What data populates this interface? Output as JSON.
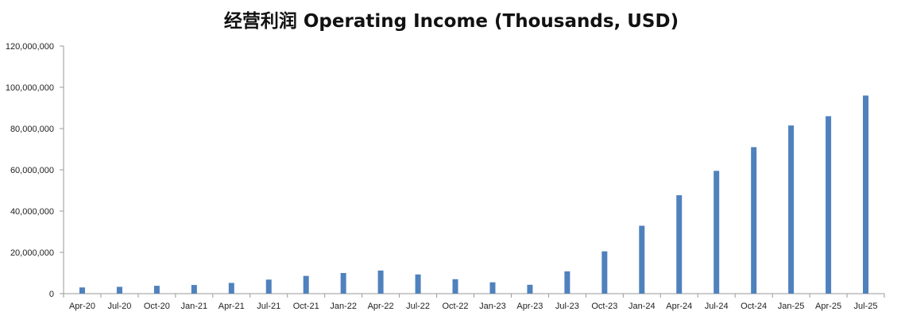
{
  "chart_data": {
    "type": "bar",
    "title": "经营利润 Operating Income (Thousands, USD)",
    "xlabel": "",
    "ylabel": "",
    "ylim": [
      0,
      120000000
    ],
    "yticks": [
      "0",
      "20,000,000",
      "40,000,000",
      "60,000,000",
      "80,000,000",
      "100,000,000",
      "120,000,000"
    ],
    "grid": false,
    "bar_color": "#4f81bd",
    "categories": [
      "Apr-20",
      "Jul-20",
      "Oct-20",
      "Jan-21",
      "Apr-21",
      "Jul-21",
      "Oct-21",
      "Jan-22",
      "Apr-22",
      "Jul-22",
      "Oct-22",
      "Jan-23",
      "Apr-23",
      "Jul-23",
      "Oct-23",
      "Jan-24",
      "Apr-24",
      "Jul-24",
      "Oct-24",
      "Jan-25",
      "Apr-25",
      "Jul-25"
    ],
    "values": [
      3000000,
      3300000,
      3800000,
      4200000,
      5200000,
      6800000,
      8600000,
      10000000,
      11200000,
      9300000,
      7000000,
      5500000,
      4300000,
      10800000,
      20500000,
      32900000,
      47700000,
      59500000,
      71000000,
      81500000,
      86000000,
      96000000
    ]
  }
}
